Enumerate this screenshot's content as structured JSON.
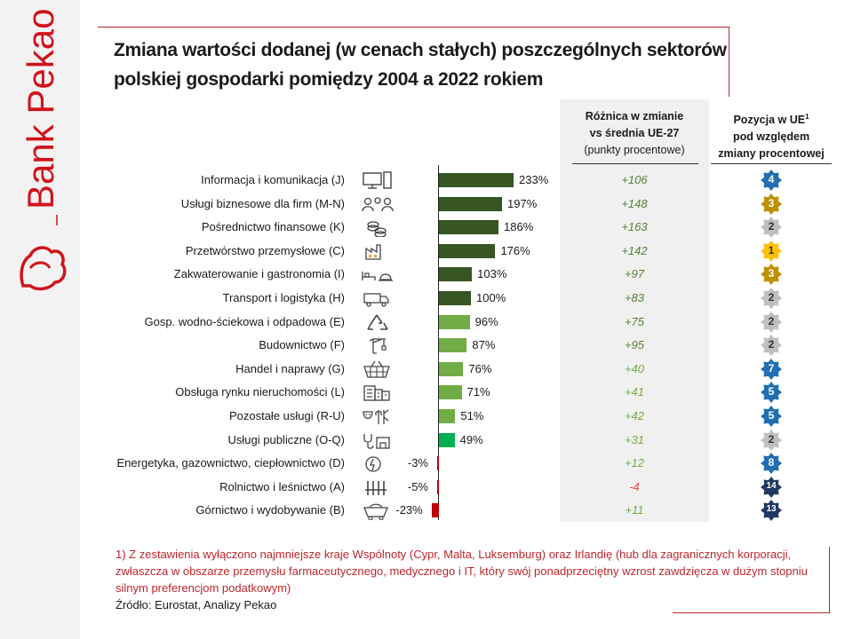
{
  "brand": {
    "name": "Bank Pekao"
  },
  "title": "Zmiana wartości dodanej (w cenach stałych) poszczególnych sektorów polskiej gospodarki pomiędzy 2004 a 2022 rokiem",
  "headers": {
    "diff_line1": "Różnica w zmianie",
    "diff_line2": "vs średnia UE-27",
    "diff_line3": "(punkty procentowe)",
    "pos_line1": "Pozycja w UE",
    "pos_sup": "1",
    "pos_line2": "pod względem",
    "pos_line3": "zmiany procentowej"
  },
  "colors": {
    "dark_green": "#375623",
    "mid_green": "#548235",
    "light_green": "#70ad47",
    "bright_green": "#00b050",
    "red": "#c00000",
    "diff_green": "#70ad47",
    "diff_red": "#ff3b3b",
    "badge_blue": "#1f6fb2",
    "badge_gold": "#bf9000",
    "badge_yellow": "#ffc000",
    "badge_gray": "#bfbfbf",
    "badge_navy": "#1f3864"
  },
  "chart_data": {
    "type": "bar",
    "orientation": "horizontal",
    "title": "Zmiana wartości dodanej (w cenach stałych) poszczególnych sektorów polskiej gospodarki pomiędzy 2004 a 2022 rokiem",
    "categories": [
      "Informacja i komunikacja (J)",
      "Usługi biznesowe dla firm (M-N)",
      "Pośrednictwo finansowe (K)",
      "Przetwórstwo przemysłowe (C)",
      "Zakwaterowanie i gastronomia (I)",
      "Transport i logistyka (H)",
      "Gosp. wodno-ściekowa i odpadowa (E)",
      "Budownictwo (F)",
      "Handel i naprawy (G)",
      "Obsługa rynku nieruchomości (L)",
      "Pozostałe usługi (R-U)",
      "Usługi publiczne (O-Q)",
      "Energetyka, gazownictwo, ciepłownictwo (D)",
      "Rolnictwo i leśnictwo (A)",
      "Górnictwo i wydobywanie (B)"
    ],
    "values": [
      233,
      197,
      186,
      176,
      103,
      100,
      96,
      87,
      76,
      71,
      51,
      49,
      -3,
      -5,
      -23
    ],
    "value_labels": [
      "233%",
      "197%",
      "186%",
      "176%",
      "103%",
      "100%",
      "96%",
      "87%",
      "76%",
      "71%",
      "51%",
      "49%",
      "-3%",
      "-5%",
      "-23%"
    ],
    "bar_colors": [
      "dark_green",
      "dark_green",
      "dark_green",
      "dark_green",
      "dark_green",
      "dark_green",
      "light_green",
      "light_green",
      "light_green",
      "light_green",
      "light_green",
      "bright_green",
      "red",
      "red",
      "red"
    ],
    "icons": [
      "computer-icon",
      "people-icon",
      "coins-icon",
      "factory-icon",
      "hotel-icon",
      "truck-icon",
      "recycle-icon",
      "crane-icon",
      "basket-icon",
      "buildings-icon",
      "theater-icon",
      "stethoscope-icon",
      "energy-icon",
      "grain-icon",
      "mine-cart-icon"
    ],
    "diff_vs_eu": [
      "+106",
      "+148",
      "+163",
      "+142",
      "+97",
      "+83",
      "+75",
      "+95",
      "+40",
      "+41",
      "+42",
      "+31",
      "+12",
      "-4",
      "+11"
    ],
    "eu_position": [
      4,
      3,
      2,
      1,
      3,
      2,
      2,
      2,
      7,
      5,
      5,
      2,
      8,
      14,
      13
    ],
    "badge_colors": [
      "badge_blue",
      "badge_gold",
      "badge_gray",
      "badge_yellow",
      "badge_gold",
      "badge_gray",
      "badge_gray",
      "badge_gray",
      "badge_blue",
      "badge_blue",
      "badge_blue",
      "badge_gray",
      "badge_blue",
      "badge_navy",
      "badge_navy"
    ],
    "xlim": [
      -30,
      240
    ],
    "unit": "%"
  },
  "note": {
    "text": "1) Z zestawienia wyłączono najmniejsze kraje Wspólnoty (Cypr, Malta, Luksemburg) oraz Irlandię (hub dla zagranicznych korporacji, zwłaszcza w obszarze przemysłu farmaceutycznego, medycznego i IT, który swój ponadprzeciętny wzrost zawdzięcza w dużym stopniu silnym preferencjom podatkowym)",
    "source": "Źródło: Eurostat, Analizy Pekao"
  }
}
